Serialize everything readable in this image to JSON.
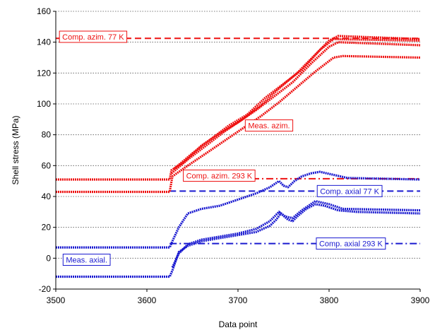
{
  "chart_data": {
    "type": "line",
    "xlabel": "Data point",
    "ylabel": "Shell stress (MPa)",
    "xlim": [
      3500,
      3900
    ],
    "ylim": [
      -20,
      160
    ],
    "xticks": [
      3500,
      3600,
      3700,
      3800,
      3900
    ],
    "yticks": [
      -20,
      0,
      20,
      40,
      60,
      80,
      100,
      120,
      140,
      160
    ],
    "grid": "horizontal dotted",
    "colors": {
      "red": "#ee1111",
      "blue": "#1a1ad0"
    },
    "reference_lines": [
      {
        "label": "Comp. azim. 77 K",
        "y": 142.5,
        "color": "#ee1111",
        "dash": "dashed"
      },
      {
        "label": "Comp. azim. 293 K",
        "y": 51.5,
        "color": "#ee1111",
        "dash": "dashdot",
        "x_start": 3700
      },
      {
        "label": "Comp. axial 77 K",
        "y": 43.5,
        "color": "#1a1ad0",
        "dash": "dashed",
        "x_start": 3625
      },
      {
        "label": "Comp. axial 293 K",
        "y": 9.5,
        "color": "#1a1ad0",
        "dash": "dashdot",
        "x_start": 3625
      }
    ],
    "series": [
      {
        "group": "Meas. azim.",
        "color": "#ee1111",
        "points": [
          [
            3500,
            51
          ],
          [
            3625,
            51
          ],
          [
            3627,
            57
          ],
          [
            3640,
            62
          ],
          [
            3660,
            73
          ],
          [
            3680,
            81
          ],
          [
            3700,
            88
          ],
          [
            3720,
            96
          ],
          [
            3740,
            105
          ],
          [
            3760,
            114
          ],
          [
            3780,
            126
          ],
          [
            3800,
            137
          ],
          [
            3810,
            140
          ],
          [
            3900,
            138
          ]
        ]
      },
      {
        "group": "Meas. azim.",
        "color": "#ee1111",
        "points": [
          [
            3627,
            55
          ],
          [
            3645,
            64
          ],
          [
            3665,
            73
          ],
          [
            3685,
            82
          ],
          [
            3705,
            90
          ],
          [
            3725,
            99
          ],
          [
            3745,
            110
          ],
          [
            3765,
            120
          ],
          [
            3785,
            132
          ],
          [
            3800,
            141
          ],
          [
            3810,
            144
          ],
          [
            3900,
            142
          ]
        ]
      },
      {
        "group": "Meas. azim.",
        "color": "#ee1111",
        "points": [
          [
            3500,
            43
          ],
          [
            3625,
            43
          ],
          [
            3628,
            53
          ],
          [
            3645,
            60
          ],
          [
            3665,
            68
          ],
          [
            3685,
            76
          ],
          [
            3705,
            84
          ],
          [
            3725,
            92
          ],
          [
            3745,
            101
          ],
          [
            3765,
            111
          ],
          [
            3785,
            121
          ],
          [
            3805,
            130
          ],
          [
            3815,
            131
          ],
          [
            3900,
            130
          ]
        ]
      },
      {
        "group": "Meas. azim.",
        "color": "#ee1111",
        "points": [
          [
            3630,
            58
          ],
          [
            3650,
            68
          ],
          [
            3670,
            77
          ],
          [
            3690,
            86
          ],
          [
            3710,
            93
          ],
          [
            3730,
            104
          ],
          [
            3750,
            113
          ],
          [
            3770,
            122
          ],
          [
            3790,
            135
          ],
          [
            3805,
            142
          ],
          [
            3900,
            141
          ]
        ]
      },
      {
        "group": "Meas. axial.",
        "color": "#1a1ad0",
        "points": [
          [
            3500,
            7
          ],
          [
            3625,
            7
          ],
          [
            3628,
            11
          ],
          [
            3635,
            20
          ],
          [
            3645,
            29
          ],
          [
            3660,
            32
          ],
          [
            3680,
            34
          ],
          [
            3700,
            38
          ],
          [
            3720,
            42
          ],
          [
            3735,
            46
          ],
          [
            3745,
            50
          ],
          [
            3750,
            47
          ],
          [
            3755,
            46
          ],
          [
            3762,
            50
          ],
          [
            3770,
            53
          ],
          [
            3780,
            55
          ],
          [
            3790,
            56
          ],
          [
            3805,
            54
          ],
          [
            3820,
            52
          ],
          [
            3900,
            51
          ]
        ]
      },
      {
        "group": "Meas. axial.",
        "color": "#1a1ad0",
        "points": [
          [
            3500,
            -12
          ],
          [
            3625,
            -12
          ],
          [
            3628,
            -8
          ],
          [
            3635,
            4
          ],
          [
            3645,
            8
          ],
          [
            3660,
            11
          ],
          [
            3680,
            13
          ],
          [
            3700,
            15
          ],
          [
            3720,
            17
          ],
          [
            3735,
            21
          ],
          [
            3742,
            25
          ],
          [
            3747,
            29
          ],
          [
            3755,
            25
          ],
          [
            3760,
            24
          ],
          [
            3765,
            27
          ],
          [
            3775,
            32
          ],
          [
            3785,
            35
          ],
          [
            3795,
            34
          ],
          [
            3810,
            31
          ],
          [
            3830,
            30
          ],
          [
            3900,
            29
          ]
        ]
      },
      {
        "group": "Meas. axial.",
        "color": "#1a1ad0",
        "points": [
          [
            3628,
            -6
          ],
          [
            3635,
            3
          ],
          [
            3645,
            9
          ],
          [
            3660,
            12
          ],
          [
            3680,
            14
          ],
          [
            3700,
            16
          ],
          [
            3720,
            19
          ],
          [
            3735,
            24
          ],
          [
            3745,
            30
          ],
          [
            3752,
            27
          ],
          [
            3760,
            26
          ],
          [
            3770,
            31
          ],
          [
            3785,
            37
          ],
          [
            3800,
            35
          ],
          [
            3815,
            32
          ],
          [
            3900,
            31
          ]
        ]
      }
    ],
    "annotations": [
      {
        "text": "Comp. azim. 77 K",
        "x": 3504,
        "y": 143.5,
        "color": "#ee1111"
      },
      {
        "text": "Meas. azim.",
        "x": 3708,
        "y": 86,
        "color": "#ee1111"
      },
      {
        "text": "Comp. azim. 293 K",
        "x": 3640,
        "y": 53.5,
        "color": "#ee1111"
      },
      {
        "text": "Comp. axial 77 K",
        "x": 3787,
        "y": 43.5,
        "color": "#1a1ad0"
      },
      {
        "text": "Comp. axial 293 K",
        "x": 3786,
        "y": 9.5,
        "color": "#1a1ad0"
      },
      {
        "text": "Meas. axial.",
        "x": 3508,
        "y": -1,
        "color": "#1a1ad0"
      }
    ]
  }
}
